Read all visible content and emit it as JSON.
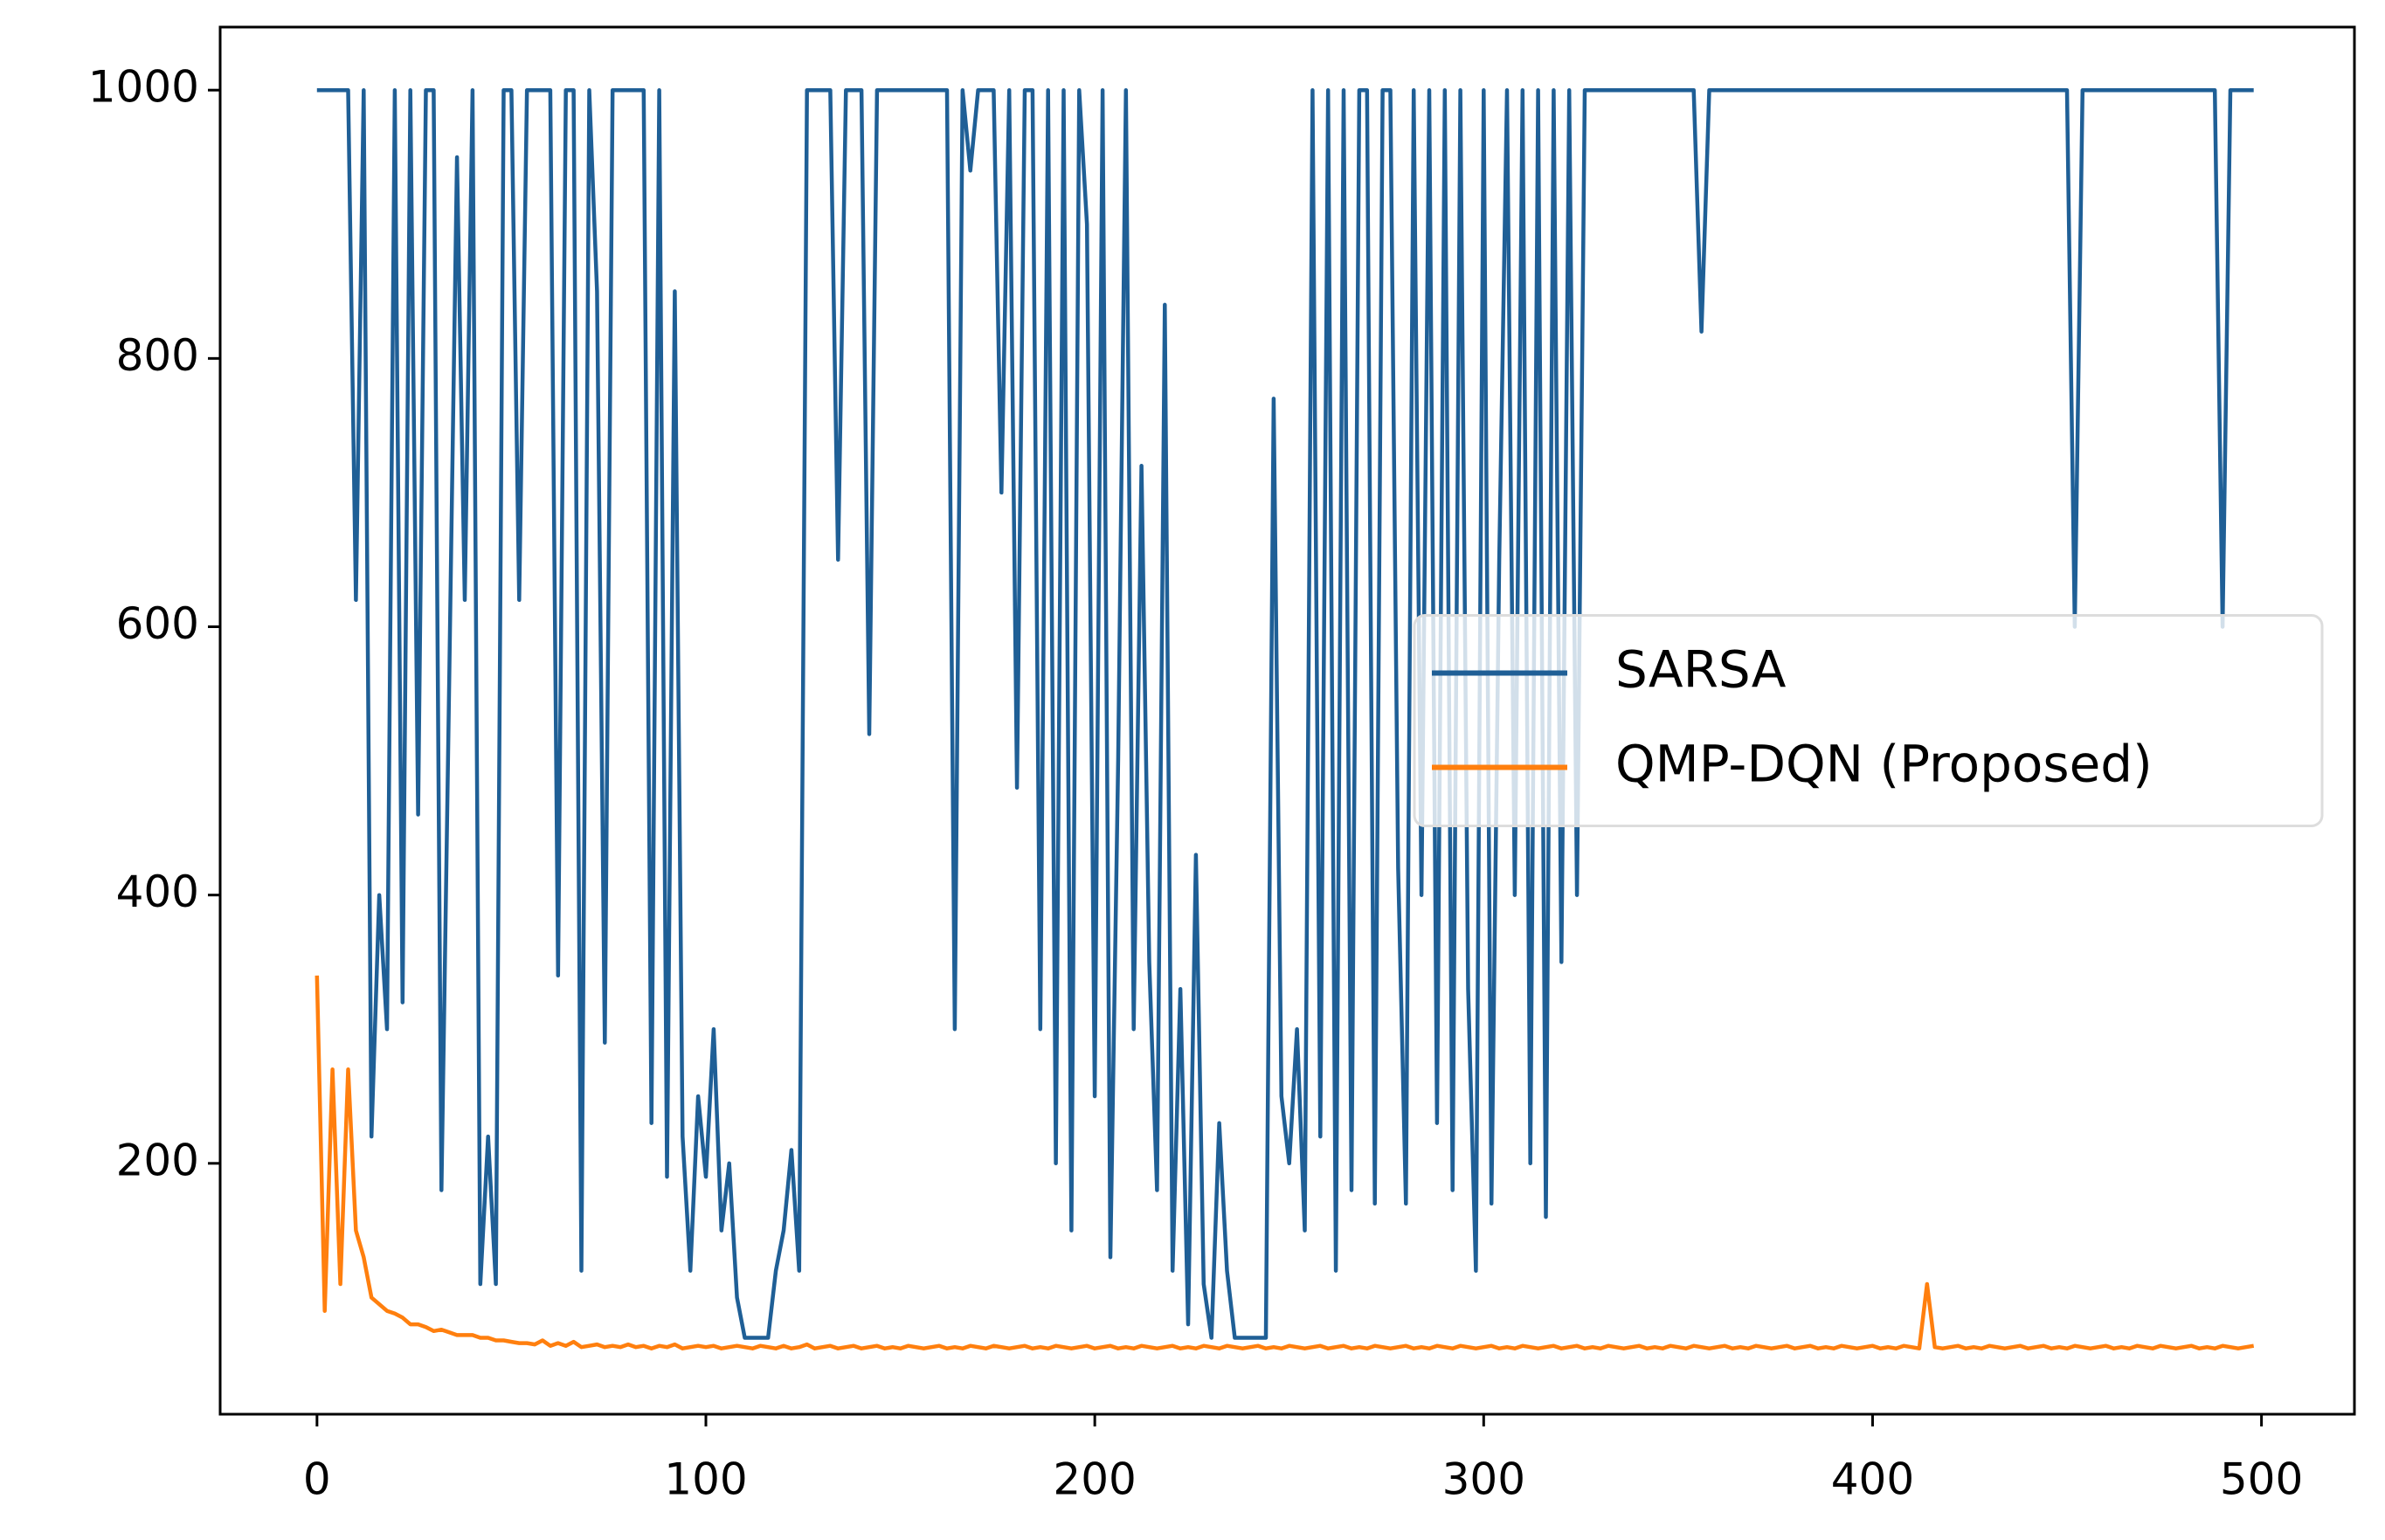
{
  "chart_data": {
    "type": "line",
    "x": [
      0,
      2,
      4,
      6,
      8,
      10,
      12,
      14,
      16,
      18,
      20,
      22,
      24,
      26,
      28,
      30,
      32,
      34,
      36,
      38,
      40,
      42,
      44,
      46,
      48,
      50,
      52,
      54,
      56,
      58,
      60,
      62,
      64,
      66,
      68,
      70,
      72,
      74,
      76,
      78,
      80,
      82,
      84,
      86,
      88,
      90,
      92,
      94,
      96,
      98,
      100,
      102,
      104,
      106,
      108,
      110,
      112,
      114,
      116,
      118,
      120,
      122,
      124,
      126,
      128,
      130,
      132,
      134,
      136,
      138,
      140,
      142,
      144,
      146,
      148,
      150,
      152,
      154,
      156,
      158,
      160,
      162,
      164,
      166,
      168,
      170,
      172,
      174,
      176,
      178,
      180,
      182,
      184,
      186,
      188,
      190,
      192,
      194,
      196,
      198,
      200,
      202,
      204,
      206,
      208,
      210,
      212,
      214,
      216,
      218,
      220,
      222,
      224,
      226,
      228,
      230,
      232,
      234,
      236,
      238,
      240,
      242,
      244,
      246,
      248,
      250,
      252,
      254,
      256,
      258,
      260,
      262,
      264,
      266,
      268,
      270,
      272,
      274,
      276,
      278,
      280,
      282,
      284,
      286,
      288,
      290,
      292,
      294,
      296,
      298,
      300,
      302,
      304,
      306,
      308,
      310,
      312,
      314,
      316,
      318,
      320,
      322,
      324,
      326,
      328,
      330,
      332,
      334,
      336,
      338,
      340,
      342,
      344,
      346,
      348,
      350,
      352,
      354,
      356,
      358,
      360,
      362,
      364,
      366,
      368,
      370,
      372,
      374,
      376,
      378,
      380,
      382,
      384,
      386,
      388,
      390,
      392,
      394,
      396,
      398,
      400,
      402,
      404,
      406,
      408,
      410,
      412,
      414,
      416,
      418,
      420,
      422,
      424,
      426,
      428,
      430,
      432,
      434,
      436,
      438,
      440,
      442,
      444,
      446,
      448,
      450,
      452,
      454,
      456,
      458,
      460,
      462,
      464,
      466,
      468,
      470,
      472,
      474,
      476,
      478,
      480,
      482,
      484,
      486,
      488,
      490,
      492,
      494,
      496,
      498
    ],
    "series": [
      {
        "name": "SARSA",
        "color": "#1f5f96",
        "values": [
          1000,
          1000,
          1000,
          1000,
          1000,
          620,
          1000,
          220,
          400,
          300,
          1000,
          320,
          1000,
          460,
          1000,
          1000,
          180,
          560,
          950,
          620,
          1000,
          110,
          220,
          110,
          1000,
          1000,
          620,
          1000,
          1000,
          1000,
          1000,
          340,
          1000,
          1000,
          120,
          1000,
          850,
          290,
          1000,
          1000,
          1000,
          1000,
          1000,
          230,
          1000,
          190,
          850,
          220,
          120,
          250,
          190,
          300,
          150,
          200,
          100,
          70,
          70,
          70,
          70,
          120,
          150,
          210,
          120,
          1000,
          1000,
          1000,
          1000,
          650,
          1000,
          1000,
          1000,
          520,
          1000,
          1000,
          1000,
          1000,
          1000,
          1000,
          1000,
          1000,
          1000,
          1000,
          300,
          1000,
          940,
          1000,
          1000,
          1000,
          700,
          1000,
          480,
          1000,
          1000,
          300,
          1000,
          200,
          1000,
          150,
          1000,
          900,
          250,
          1000,
          130,
          500,
          1000,
          300,
          720,
          350,
          180,
          840,
          120,
          330,
          80,
          430,
          110,
          70,
          230,
          120,
          70,
          70,
          70,
          70,
          70,
          770,
          250,
          200,
          300,
          150,
          1000,
          220,
          1000,
          120,
          1000,
          180,
          1000,
          1000,
          170,
          1000,
          1000,
          420,
          170,
          1000,
          400,
          1000,
          230,
          1000,
          180,
          1000,
          330,
          120,
          1000,
          170,
          650,
          1000,
          400,
          1000,
          200,
          1000,
          160,
          1000,
          350,
          1000,
          400,
          1000,
          1000,
          1000,
          1000,
          1000,
          1000,
          1000,
          1000,
          1000,
          1000,
          1000,
          1000,
          1000,
          1000,
          1000,
          820,
          1000,
          1000,
          1000,
          1000,
          1000,
          1000,
          1000,
          1000,
          1000,
          1000,
          1000,
          1000,
          1000,
          1000,
          1000,
          1000,
          1000,
          1000,
          1000,
          1000,
          1000,
          1000,
          1000,
          1000,
          1000,
          1000,
          1000,
          1000,
          1000,
          1000,
          1000,
          1000,
          1000,
          1000,
          1000,
          1000,
          1000,
          1000,
          1000,
          1000,
          1000,
          1000,
          1000,
          1000,
          1000,
          1000,
          1000,
          600,
          1000,
          1000,
          1000,
          1000,
          1000,
          1000,
          1000,
          1000,
          1000,
          1000,
          1000,
          1000,
          1000,
          1000,
          1000,
          1000,
          1000,
          1000,
          600,
          1000,
          1000,
          1000,
          1000
        ]
      },
      {
        "name": "QMP-DQN (Proposed)",
        "color": "#ff7f0e",
        "values": [
          340,
          90,
          270,
          110,
          270,
          150,
          130,
          100,
          95,
          90,
          88,
          85,
          80,
          80,
          78,
          75,
          76,
          74,
          72,
          72,
          72,
          70,
          70,
          68,
          68,
          67,
          66,
          66,
          65,
          68,
          64,
          66,
          64,
          67,
          63,
          64,
          65,
          63,
          64,
          63,
          65,
          63,
          64,
          62,
          64,
          63,
          65,
          62,
          63,
          64,
          63,
          64,
          62,
          63,
          64,
          63,
          62,
          64,
          63,
          62,
          64,
          62,
          63,
          65,
          62,
          63,
          64,
          62,
          63,
          64,
          62,
          63,
          64,
          62,
          63,
          62,
          64,
          63,
          62,
          63,
          64,
          62,
          63,
          62,
          64,
          63,
          62,
          64,
          63,
          62,
          63,
          64,
          62,
          63,
          62,
          64,
          63,
          62,
          63,
          64,
          62,
          63,
          64,
          62,
          63,
          62,
          64,
          63,
          62,
          63,
          64,
          62,
          63,
          62,
          64,
          63,
          62,
          64,
          63,
          62,
          63,
          64,
          62,
          63,
          62,
          64,
          63,
          62,
          63,
          64,
          62,
          63,
          64,
          62,
          63,
          62,
          64,
          63,
          62,
          63,
          64,
          62,
          63,
          62,
          64,
          63,
          62,
          64,
          63,
          62,
          63,
          64,
          62,
          63,
          62,
          64,
          63,
          62,
          63,
          64,
          62,
          63,
          64,
          62,
          63,
          62,
          64,
          63,
          62,
          63,
          64,
          62,
          63,
          62,
          64,
          63,
          62,
          64,
          63,
          62,
          63,
          64,
          62,
          63,
          62,
          64,
          63,
          62,
          63,
          64,
          62,
          63,
          64,
          62,
          63,
          62,
          64,
          63,
          62,
          63,
          64,
          62,
          63,
          62,
          64,
          63,
          62,
          110,
          63,
          62,
          63,
          64,
          62,
          63,
          62,
          64,
          63,
          62,
          63,
          64,
          62,
          63,
          64,
          62,
          63,
          62,
          64,
          63,
          62,
          63,
          64,
          62,
          63,
          62,
          64,
          63,
          62,
          64,
          63,
          62,
          63,
          64,
          62,
          63,
          62,
          64,
          63,
          62,
          63,
          64
        ]
      }
    ],
    "xlim": [
      -24.9,
      523.9
    ],
    "ylim": [
      13,
      1047
    ],
    "xticks": [
      0,
      100,
      200,
      300,
      400,
      500
    ],
    "yticks": [
      200,
      400,
      600,
      800,
      1000
    ],
    "legend": "center right"
  }
}
